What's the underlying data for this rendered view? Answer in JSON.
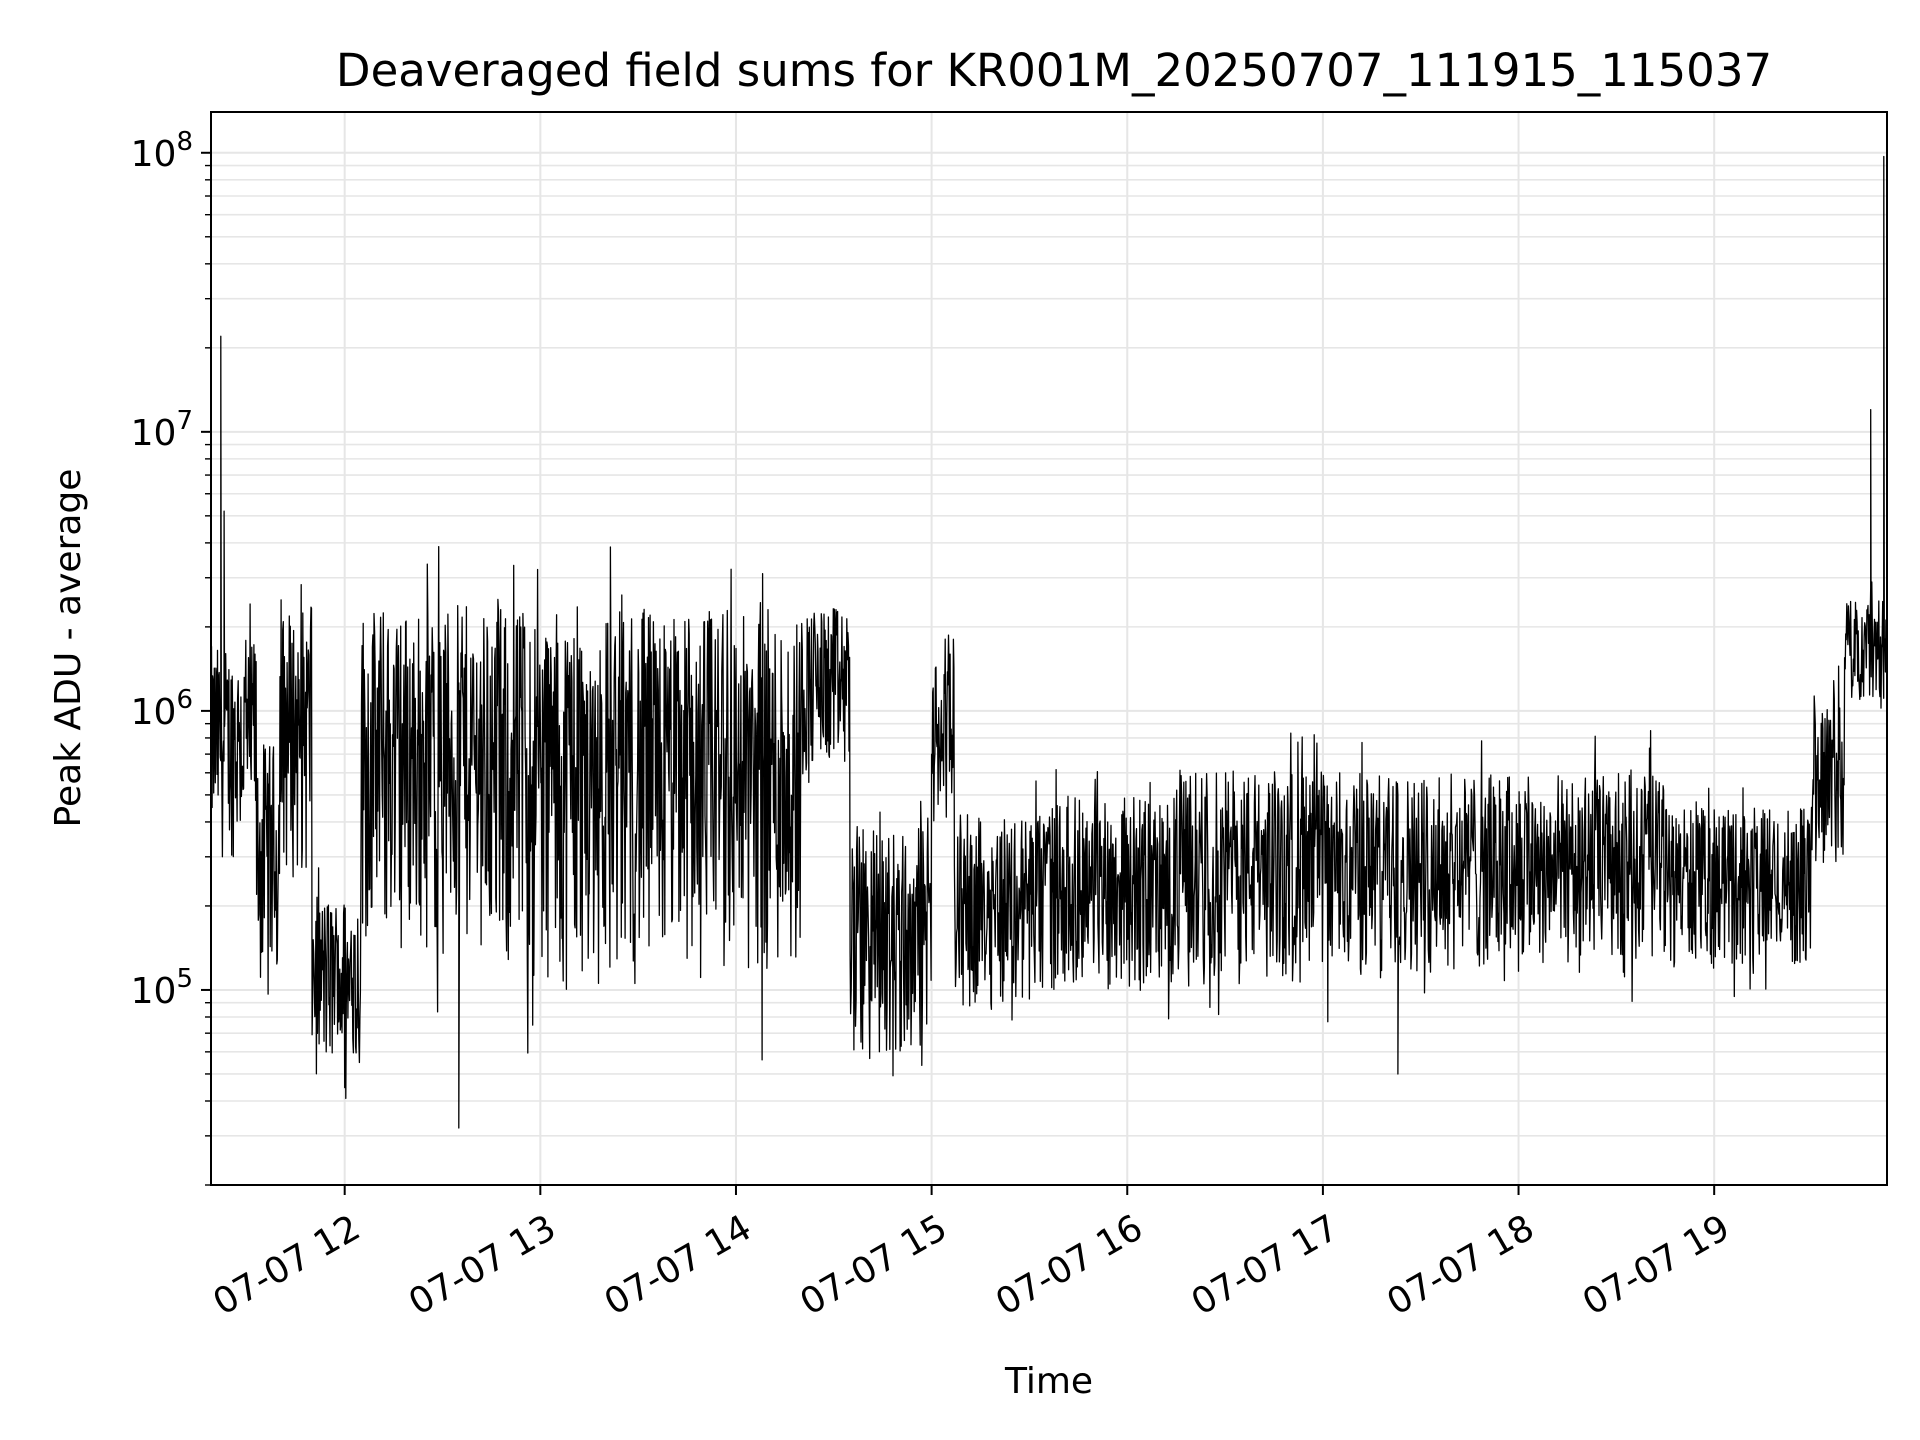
{
  "chart_data": {
    "type": "line",
    "title": "Deaveraged field sums for KR001M_20250707_111915_115037",
    "xlabel": "Time",
    "ylabel": "Peak ADU - average",
    "yscale": "log",
    "ylim": [
      20000,
      140000000
    ],
    "xlim": [
      "2025-07-07 11:19",
      "2025-07-07 19:53"
    ],
    "grid": true,
    "legend": "none",
    "line_color": "#000000",
    "x_ticks": [
      "2025-07-07 12:00",
      "2025-07-07 13:00",
      "2025-07-07 14:00",
      "2025-07-07 15:00",
      "2025-07-07 16:00",
      "2025-07-07 17:00",
      "2025-07-07 18:00",
      "2025-07-07 19:00"
    ],
    "x_tick_labels": [
      "07-07 12",
      "07-07 13",
      "07-07 14",
      "07-07 15",
      "07-07 16",
      "07-07 17",
      "07-07 18",
      "07-07 19"
    ],
    "y_ticks": [
      100000,
      1000000,
      10000000,
      100000000
    ],
    "y_tick_labels": [
      {
        "base": "10",
        "exp": "5"
      },
      {
        "base": "10",
        "exp": "6"
      },
      {
        "base": "10",
        "exp": "7"
      },
      {
        "base": "10",
        "exp": "8"
      }
    ],
    "series": [
      {
        "segments": [
          {
            "start": "2025-07-07 11:19",
            "end": "2025-07-07 11:33",
            "lo": 200000,
            "hi": 2500000
          },
          {
            "start": "2025-07-07 11:33",
            "end": "2025-07-07 11:40",
            "lo": 60000,
            "hi": 1200000
          },
          {
            "start": "2025-07-07 11:40",
            "end": "2025-07-07 11:50",
            "lo": 150000,
            "hi": 3800000
          },
          {
            "start": "2025-07-07 11:50",
            "end": "2025-07-07 12:05",
            "lo": 35000,
            "hi": 300000
          },
          {
            "start": "2025-07-07 12:05",
            "end": "2025-07-07 12:45",
            "lo": 75000,
            "hi": 4400000
          },
          {
            "start": "2025-07-07 12:45",
            "end": "2025-07-07 13:40",
            "lo": 50000,
            "hi": 4600000
          },
          {
            "start": "2025-07-07 13:40",
            "end": "2025-07-07 14:20",
            "lo": 55000,
            "hi": 4500000
          },
          {
            "start": "2025-07-07 14:20",
            "end": "2025-07-07 14:35",
            "lo": 400000,
            "hi": 3200000
          },
          {
            "start": "2025-07-07 14:35",
            "end": "2025-07-07 15:00",
            "lo": 33000,
            "hi": 600000
          },
          {
            "start": "2025-07-07 15:00",
            "end": "2025-07-07 15:07",
            "lo": 300000,
            "hi": 2000000
          },
          {
            "start": "2025-07-07 15:07",
            "end": "2025-07-07 15:35",
            "lo": 60000,
            "hi": 600000
          },
          {
            "start": "2025-07-07 15:35",
            "end": "2025-07-07 16:15",
            "lo": 70000,
            "hi": 700000
          },
          {
            "start": "2025-07-07 16:15",
            "end": "2025-07-07 17:15",
            "lo": 70000,
            "hi": 900000
          },
          {
            "start": "2025-07-07 17:15",
            "end": "2025-07-07 18:45",
            "lo": 80000,
            "hi": 850000
          },
          {
            "start": "2025-07-07 18:45",
            "end": "2025-07-07 19:30",
            "lo": 90000,
            "hi": 600000
          },
          {
            "start": "2025-07-07 19:30",
            "end": "2025-07-07 19:40",
            "lo": 200000,
            "hi": 1600000
          },
          {
            "start": "2025-07-07 19:40",
            "end": "2025-07-07 19:53",
            "lo": 900000,
            "hi": 3000000
          }
        ],
        "spikes": [
          {
            "x": "2025-07-07 11:22",
            "y": 22000000
          },
          {
            "x": "2025-07-07 11:23",
            "y": 5200000
          },
          {
            "x": "2025-07-07 12:35",
            "y": 32000
          },
          {
            "x": "2025-07-07 17:23",
            "y": 50000
          },
          {
            "x": "2025-07-07 19:48",
            "y": 12000000
          },
          {
            "x": "2025-07-07 19:52",
            "y": 97000000
          }
        ]
      }
    ]
  }
}
